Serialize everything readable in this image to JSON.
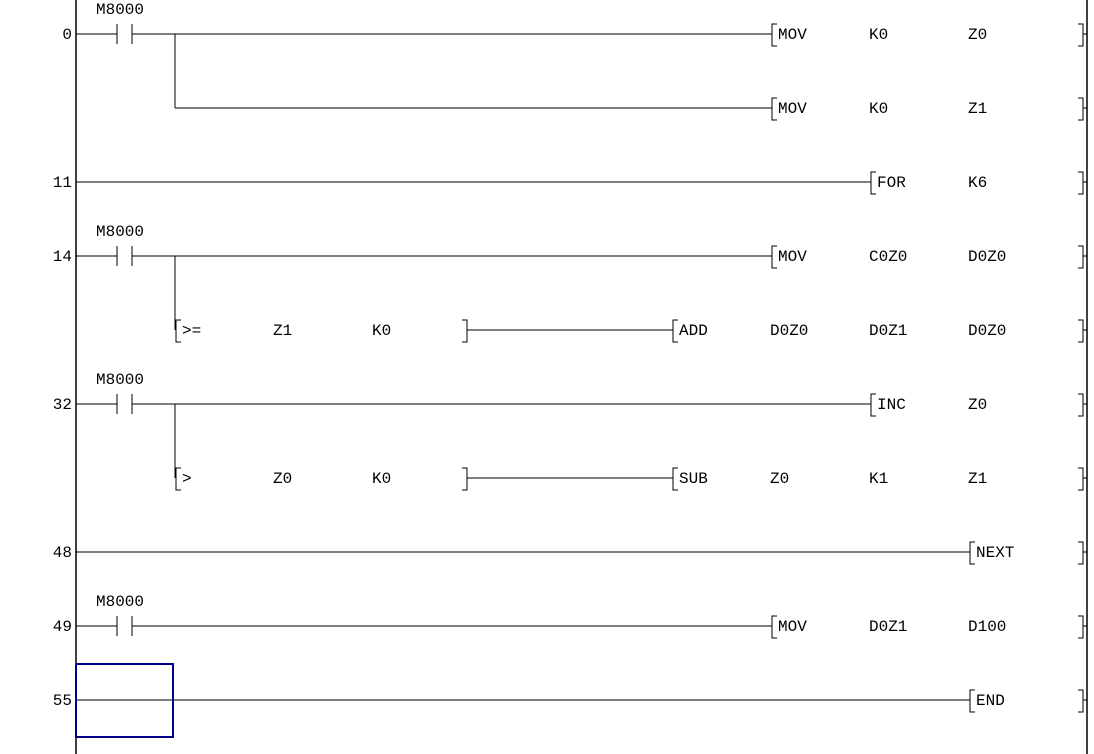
{
  "editor": {
    "view": "ladder",
    "cursor_color": "#00008b",
    "line_color": "#000000"
  },
  "rows": [
    {
      "step": "0",
      "contact": "M8000",
      "instruction": [
        "MOV",
        "K0",
        "Z0"
      ]
    },
    {
      "step": "",
      "branch": true,
      "instruction": [
        "MOV",
        "K0",
        "Z1"
      ]
    },
    {
      "step": "11",
      "instruction": [
        "FOR",
        "K6"
      ]
    },
    {
      "step": "14",
      "contact": "M8000",
      "instruction": [
        "MOV",
        "C0Z0",
        "D0Z0"
      ]
    },
    {
      "step": "",
      "branch": true,
      "compare": [
        ">=",
        "Z1",
        "K0"
      ],
      "instruction": [
        "ADD",
        "D0Z0",
        "D0Z1",
        "D0Z0"
      ]
    },
    {
      "step": "32",
      "contact": "M8000",
      "instruction": [
        "INC",
        "Z0"
      ]
    },
    {
      "step": "",
      "branch": true,
      "compare": [
        ">",
        "Z0",
        "K0"
      ],
      "instruction": [
        "SUB",
        "Z0",
        "K1",
        "Z1"
      ]
    },
    {
      "step": "48",
      "instruction": [
        "NEXT"
      ]
    },
    {
      "step": "49",
      "contact": "M8000",
      "instruction": [
        "MOV",
        "D0Z1",
        "D100"
      ]
    },
    {
      "step": "55",
      "cursor": true,
      "instruction": [
        "END"
      ]
    }
  ]
}
